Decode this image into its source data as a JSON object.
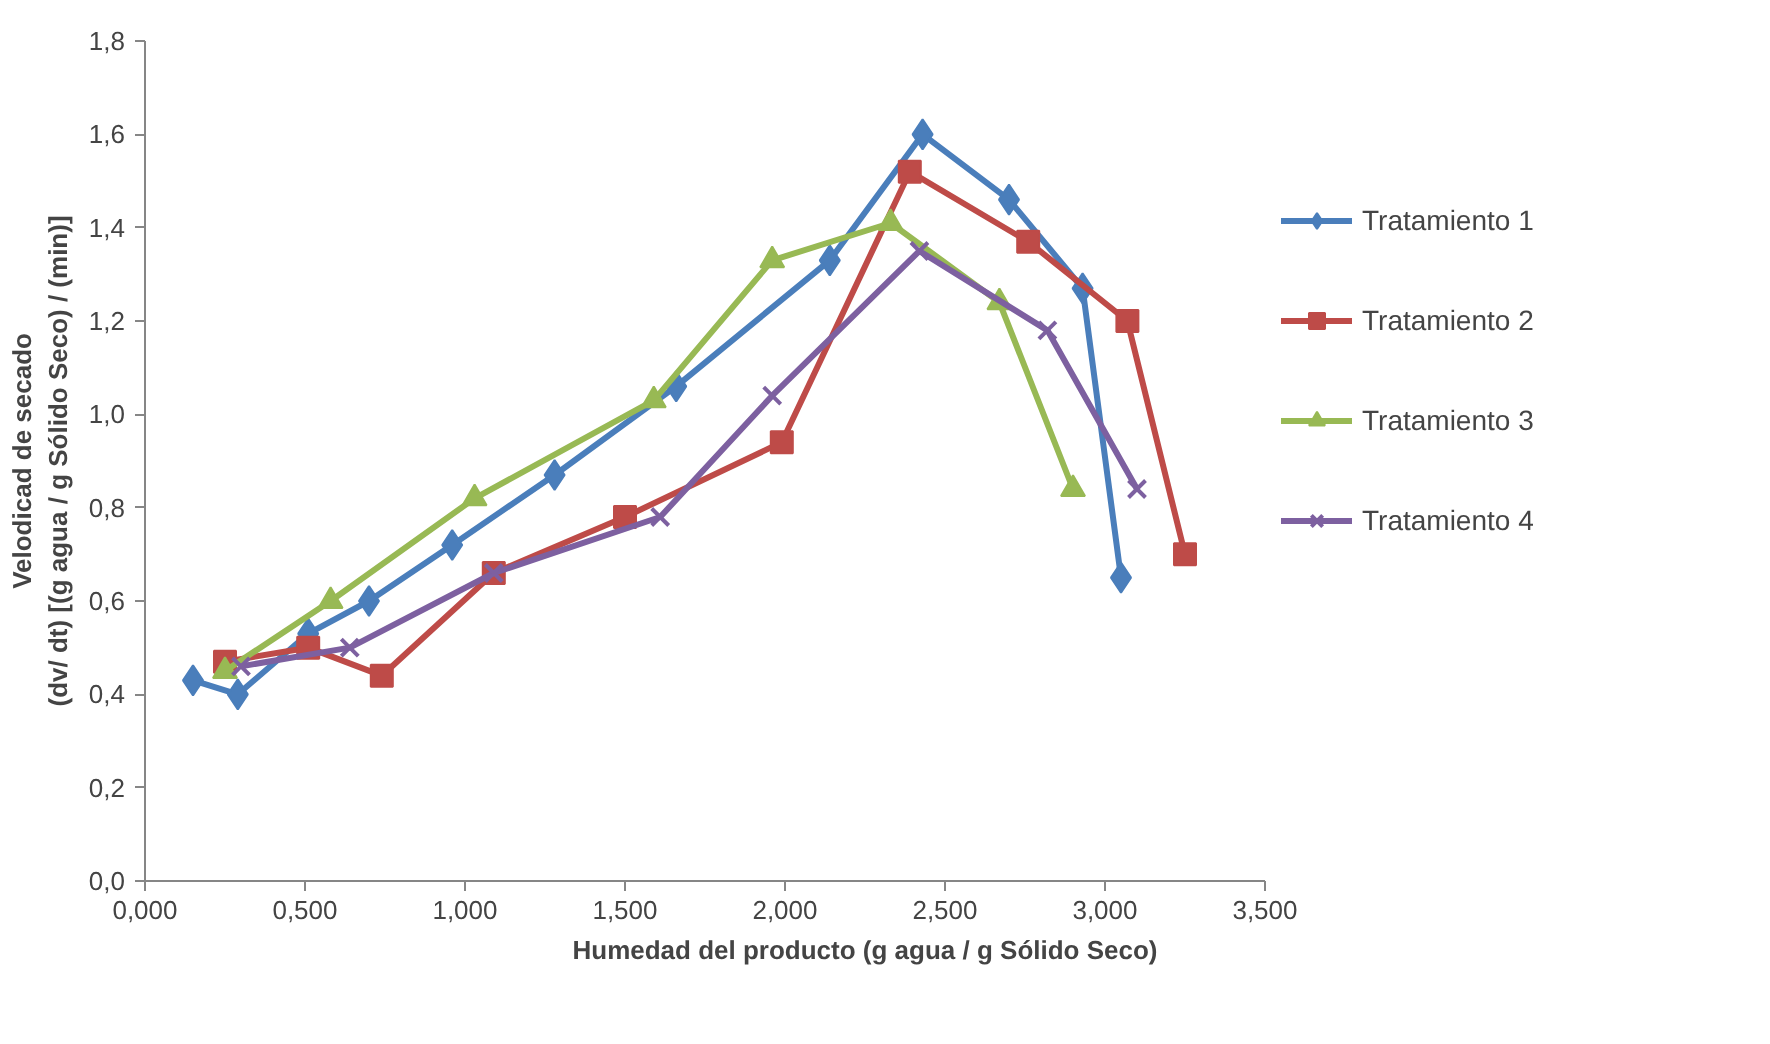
{
  "chart_data": {
    "type": "line",
    "xlabel": "Humedad del producto (g agua / g Sólido Seco)",
    "ylabel": "Velodicad de secado\n(dv/ dt) [(g agua / g Sólido Seco) / (min)]",
    "xlim": [
      0,
      3.5
    ],
    "ylim": [
      0,
      1.8
    ],
    "xticks": [
      {
        "value": 0,
        "label": "0,000"
      },
      {
        "value": 0.5,
        "label": "0,500"
      },
      {
        "value": 1,
        "label": "1,000"
      },
      {
        "value": 1.5,
        "label": "1,500"
      },
      {
        "value": 2,
        "label": "2,000"
      },
      {
        "value": 2.5,
        "label": "2,500"
      },
      {
        "value": 3,
        "label": "3,000"
      },
      {
        "value": 3.5,
        "label": "3,500"
      }
    ],
    "yticks": [
      {
        "value": 0,
        "label": "0,0"
      },
      {
        "value": 0.2,
        "label": "0,2"
      },
      {
        "value": 0.4,
        "label": "0,4"
      },
      {
        "value": 0.6,
        "label": "0,6"
      },
      {
        "value": 0.8,
        "label": "0,8"
      },
      {
        "value": 1.0,
        "label": "1,0"
      },
      {
        "value": 1.2,
        "label": "1,2"
      },
      {
        "value": 1.4,
        "label": "1,4"
      },
      {
        "value": 1.6,
        "label": "1,6"
      },
      {
        "value": 1.8,
        "label": "1,8"
      }
    ],
    "grid": false,
    "legend": "right",
    "series": [
      {
        "name": "Tratamiento 1",
        "color": "#4a7ebb",
        "marker": "diamond",
        "x": [
          0.15,
          0.29,
          0.51,
          0.7,
          0.96,
          1.28,
          1.66,
          2.14,
          2.43,
          2.7,
          2.93,
          3.05
        ],
        "values": [
          0.43,
          0.4,
          0.53,
          0.6,
          0.72,
          0.87,
          1.06,
          1.33,
          1.6,
          1.46,
          1.27,
          0.65
        ]
      },
      {
        "name": "Tratamiento 2",
        "color": "#be4b48",
        "marker": "square",
        "x": [
          0.25,
          0.51,
          0.74,
          1.09,
          1.5,
          1.99,
          2.39,
          2.76,
          3.07,
          3.25
        ],
        "values": [
          0.47,
          0.5,
          0.44,
          0.66,
          0.78,
          0.94,
          1.52,
          1.37,
          1.2,
          0.7
        ]
      },
      {
        "name": "Tratamiento 3",
        "color": "#98b954",
        "marker": "triangle",
        "x": [
          0.25,
          0.58,
          1.03,
          1.59,
          1.96,
          2.33,
          2.67,
          2.9
        ],
        "values": [
          0.45,
          0.6,
          0.82,
          1.03,
          1.33,
          1.41,
          1.24,
          0.84
        ]
      },
      {
        "name": "Tratamiento 4",
        "color": "#7d60a0",
        "marker": "cross",
        "x": [
          0.3,
          0.64,
          1.09,
          1.61,
          1.96,
          2.42,
          2.82,
          3.1
        ],
        "values": [
          0.46,
          0.5,
          0.66,
          0.78,
          1.04,
          1.35,
          1.18,
          0.84
        ]
      }
    ]
  }
}
